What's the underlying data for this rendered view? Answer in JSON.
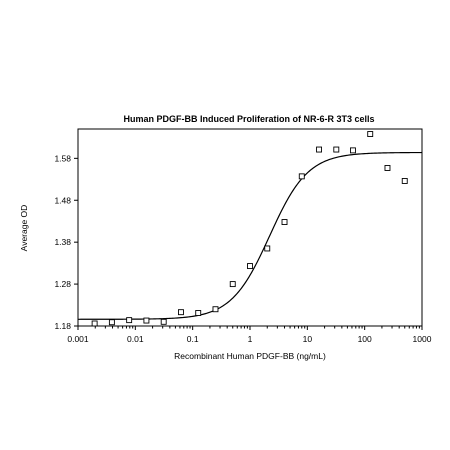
{
  "chart_data": {
    "type": "scatter",
    "title": "Human PDGF-BB Induced Proliferation of NR-6-R 3T3 cells",
    "xlabel": "Recombinant Human PDGF-BB (ng/mL)",
    "ylabel": "Average OD",
    "x_scale": "log",
    "xlim": [
      0.001,
      1000
    ],
    "ylim": [
      1.18,
      1.65
    ],
    "x_ticks": [
      0.001,
      0.01,
      0.1,
      1,
      10,
      100,
      1000
    ],
    "x_tick_labels": [
      "0.001",
      "0.01",
      "0.1",
      "1",
      "10",
      "100",
      "1000"
    ],
    "y_ticks": [
      1.18,
      1.28,
      1.38,
      1.48,
      1.58
    ],
    "y_tick_labels": [
      "1.18",
      "1.28",
      "1.38",
      "1.48",
      "1.58"
    ],
    "grid": false,
    "legend": "none",
    "marker": "open-square",
    "series": [
      {
        "x": [
          0.00195,
          0.0039,
          0.0078,
          0.0156,
          0.03125,
          0.0625,
          0.125,
          0.25,
          0.5,
          1,
          2,
          4,
          8,
          16,
          32,
          62.5,
          125,
          250,
          500
        ],
        "y": [
          1.186,
          1.189,
          1.194,
          1.193,
          1.19,
          1.213,
          1.211,
          1.22,
          1.28,
          1.323,
          1.365,
          1.428,
          1.537,
          1.601,
          1.601,
          1.599,
          1.638,
          1.557,
          1.526
        ]
      }
    ],
    "fit_curve": {
      "model": "4PL",
      "bottom": 1.196,
      "top": 1.594,
      "ec50": 2.2,
      "hill": 1.3
    }
  }
}
